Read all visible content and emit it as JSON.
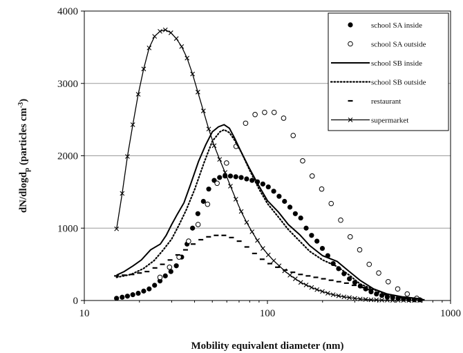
{
  "chart_data": {
    "type": "line",
    "xlabel": "Mobility equivalent diameter (nm)",
    "ylabel_main": "dN/dlogd",
    "ylabel_sub": "p",
    "ylabel_units_pre": " (particles cm",
    "ylabel_units_sup": "-3",
    "ylabel_units_post": ")",
    "x_scale": "log",
    "xlim": [
      10,
      1000
    ],
    "ylim": [
      0,
      4000
    ],
    "x_ticks": [
      10,
      100,
      1000
    ],
    "x_tick_labels": [
      "10",
      "100",
      "1000"
    ],
    "y_ticks": [
      0,
      1000,
      2000,
      3000,
      4000
    ],
    "y_tick_labels": [
      "0",
      "1000",
      "2000",
      "3000",
      "4000"
    ],
    "grid": "horizontal",
    "legend_position": "top-right",
    "series": [
      {
        "name": "school SA inside",
        "style": "filled-dot",
        "x": [
          15,
          16.1,
          17.2,
          18.4,
          19.7,
          21.1,
          22.6,
          24.2,
          25.9,
          27.7,
          29.7,
          31.8,
          34.0,
          36.4,
          39.0,
          41.7,
          44.7,
          47.8,
          51.2,
          54.8,
          58.7,
          62.8,
          67.2,
          71.9,
          77.0,
          82.4,
          88.2,
          94.4,
          101.1,
          108.2,
          115.8,
          124.0,
          132.7,
          142.0,
          152.0,
          162.7,
          174.2,
          186.4,
          199.5,
          213.6,
          228.6,
          244.7,
          261.9,
          280.3,
          300.1,
          321.2,
          343.8,
          368.0,
          393.9,
          421.6,
          451.3,
          483.0,
          517.0,
          553.4,
          592.3,
          634.0,
          678.6
        ],
        "y": [
          30,
          45,
          60,
          80,
          100,
          130,
          160,
          210,
          270,
          340,
          400,
          480,
          600,
          780,
          1000,
          1200,
          1370,
          1540,
          1660,
          1700,
          1720,
          1720,
          1710,
          1700,
          1680,
          1660,
          1640,
          1610,
          1570,
          1510,
          1440,
          1370,
          1290,
          1200,
          1140,
          1000,
          900,
          820,
          720,
          620,
          510,
          440,
          370,
          300,
          250,
          200,
          160,
          120,
          90,
          70,
          50,
          40,
          30,
          20,
          15,
          10,
          10
        ]
      },
      {
        "name": "school SA outside",
        "style": "open-dot",
        "x": [
          25.9,
          29.2,
          32.9,
          37.1,
          41.8,
          47.1,
          53.1,
          59.8,
          67.4,
          76.0,
          85.6,
          96.5,
          108.8,
          122.6,
          138.2,
          155.7,
          175.5,
          197.8,
          222.9,
          251.2,
          283.1,
          319.0,
          359.5,
          405.2,
          456.6,
          514.6,
          579.9,
          653.5
        ],
        "y": [
          320,
          460,
          600,
          820,
          1050,
          1330,
          1620,
          1900,
          2130,
          2450,
          2570,
          2600,
          2600,
          2520,
          2280,
          1930,
          1720,
          1540,
          1340,
          1110,
          880,
          700,
          500,
          380,
          260,
          160,
          90,
          30
        ]
      },
      {
        "name": "school SB inside",
        "style": "solid",
        "x": [
          15,
          16.5,
          18.5,
          20.5,
          23,
          26,
          28,
          30,
          32,
          35,
          38,
          42,
          46,
          50,
          54,
          58,
          62,
          66,
          72,
          80,
          90,
          100,
          115,
          130,
          150,
          170,
          200,
          240,
          280,
          320,
          380,
          450,
          550,
          650,
          700
        ],
        "y": [
          350,
          400,
          480,
          560,
          700,
          780,
          900,
          1050,
          1180,
          1350,
          1600,
          1920,
          2150,
          2330,
          2400,
          2430,
          2380,
          2250,
          2050,
          1820,
          1580,
          1380,
          1220,
          1050,
          910,
          760,
          620,
          540,
          400,
          280,
          160,
          90,
          50,
          30,
          20
        ]
      },
      {
        "name": "school SB outside",
        "style": "dotted",
        "x": [
          15,
          18,
          21,
          24,
          27,
          30,
          33,
          36,
          40,
          45,
          50,
          55,
          58,
          62,
          66,
          72,
          80,
          90,
          100,
          115,
          130,
          150,
          170,
          200,
          240,
          280,
          320,
          380,
          450,
          550,
          650,
          700
        ],
        "y": [
          320,
          360,
          440,
          550,
          700,
          850,
          1050,
          1250,
          1530,
          1900,
          2200,
          2330,
          2360,
          2320,
          2220,
          2050,
          1800,
          1540,
          1340,
          1150,
          980,
          820,
          680,
          560,
          470,
          350,
          230,
          150,
          90,
          45,
          25,
          15
        ]
      },
      {
        "name": "restaurant",
        "style": "dash",
        "x": [
          15,
          16.5,
          18.2,
          20.0,
          22.0,
          24.3,
          26.7,
          29.4,
          32.4,
          35.7,
          39.3,
          43.3,
          47.7,
          52.5,
          57.8,
          63.6,
          70.1,
          77.2,
          85.0,
          93.6,
          103.1,
          113.5,
          125.0,
          137.6,
          151.5,
          166.8,
          183.7,
          202.3,
          222.7,
          245.3,
          270.1,
          297.4,
          327.5,
          360.6,
          397.1,
          437.2,
          481.4,
          530.1,
          583.7,
          642.7,
          700
        ],
        "y": [
          340,
          350,
          360,
          380,
          400,
          450,
          500,
          560,
          630,
          700,
          780,
          840,
          880,
          900,
          900,
          870,
          820,
          740,
          650,
          570,
          510,
          460,
          420,
          390,
          360,
          340,
          320,
          300,
          280,
          260,
          240,
          210,
          180,
          150,
          110,
          80,
          60,
          40,
          30,
          20,
          10
        ]
      },
      {
        "name": "supermarket",
        "style": "x-line",
        "x": [
          15,
          16.1,
          17.2,
          18.4,
          19.7,
          21.1,
          22.6,
          24.2,
          25.9,
          27.7,
          29.7,
          31.8,
          34.0,
          36.4,
          39.0,
          41.7,
          44.7,
          47.8,
          51.2,
          54.8,
          58.7,
          62.8,
          67.2,
          71.9,
          77.0,
          82.4,
          88.2,
          94.4,
          101.1,
          108.2,
          115.8,
          124.0,
          132.7,
          142.0,
          152.0,
          162.7,
          174.2,
          186.4,
          199.5,
          213.6,
          228.6,
          244.7,
          261.9,
          280.3,
          300.1,
          321.2,
          343.8,
          368.0,
          393.9,
          421.6,
          451.3,
          483.0,
          517.0,
          553.4,
          592.3,
          634.0,
          678.6
        ],
        "y": [
          990,
          1480,
          1990,
          2430,
          2850,
          3200,
          3490,
          3650,
          3720,
          3740,
          3700,
          3620,
          3510,
          3350,
          3130,
          2880,
          2620,
          2370,
          2140,
          1950,
          1770,
          1580,
          1400,
          1230,
          1080,
          950,
          830,
          720,
          630,
          550,
          480,
          410,
          350,
          300,
          250,
          215,
          180,
          150,
          125,
          100,
          80,
          65,
          50,
          40,
          30,
          20,
          15,
          10,
          8,
          5,
          5,
          3,
          2,
          2,
          1,
          1,
          0
        ]
      }
    ]
  }
}
